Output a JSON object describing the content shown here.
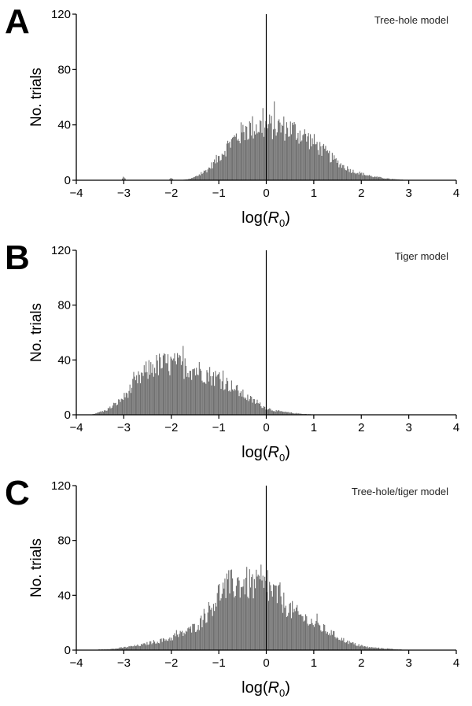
{
  "chart_data": [
    {
      "panel_label": "A",
      "type": "bar",
      "subtype": "histogram",
      "title": "Tree-hole model",
      "xlabel": "log(R0)",
      "xlabel_base": "log(",
      "xlabel_symbol": "R",
      "xlabel_sub": "0",
      "xlabel_close": ")",
      "ylabel": "No. trials",
      "xlim": [
        -4,
        4
      ],
      "ylim": [
        0,
        120
      ],
      "xticks": [
        "−4",
        "−3",
        "−2",
        "−1",
        "0",
        "1",
        "2",
        "3",
        "4"
      ],
      "yticks": [
        "0",
        "40",
        "80",
        "120"
      ],
      "reference_line_x": 0,
      "bar_color": "#6e6e6e",
      "profile": {
        "x": [
          -3.05,
          -3.0,
          -2.95,
          -2.05,
          -2.0,
          -1.95,
          -1.8,
          -1.6,
          -1.4,
          -1.2,
          -1.0,
          -0.8,
          -0.6,
          -0.4,
          -0.2,
          0.0,
          0.2,
          0.4,
          0.6,
          0.8,
          1.0,
          1.2,
          1.4,
          1.6,
          1.8,
          2.0,
          2.2,
          2.4,
          2.6,
          2.8,
          3.0,
          3.05
        ],
        "y": [
          0,
          3,
          0,
          0,
          2,
          0,
          0,
          1,
          4,
          9,
          17,
          26,
          33,
          38,
          40,
          40,
          40,
          39,
          37,
          33,
          28,
          22,
          16,
          11,
          7,
          5,
          3,
          2,
          1,
          0.5,
          0.2,
          0
        ]
      }
    },
    {
      "panel_label": "B",
      "type": "bar",
      "subtype": "histogram",
      "title": "Tiger model",
      "xlabel": "log(R0)",
      "xlabel_base": "log(",
      "xlabel_symbol": "R",
      "xlabel_sub": "0",
      "xlabel_close": ")",
      "ylabel": "No. trials",
      "xlim": [
        -4,
        4
      ],
      "ylim": [
        0,
        120
      ],
      "xticks": [
        "−4",
        "−3",
        "−2",
        "−1",
        "0",
        "1",
        "2",
        "3",
        "4"
      ],
      "yticks": [
        "0",
        "40",
        "80",
        "120"
      ],
      "reference_line_x": 0,
      "bar_color": "#6e6e6e",
      "profile": {
        "x": [
          -3.7,
          -3.6,
          -3.4,
          -3.2,
          -3.0,
          -2.8,
          -2.6,
          -2.4,
          -2.2,
          -2.0,
          -1.8,
          -1.6,
          -1.4,
          -1.2,
          -1.0,
          -0.8,
          -0.6,
          -0.4,
          -0.2,
          0.0,
          0.2,
          0.4,
          0.6,
          0.8,
          1.0,
          1.2,
          1.4
        ],
        "y": [
          0,
          1,
          3,
          7,
          13,
          22,
          30,
          36,
          38,
          38,
          37,
          35,
          33,
          30,
          27,
          23,
          18,
          13,
          9,
          5,
          3,
          2,
          1.2,
          0.6,
          0.3,
          0.1,
          0
        ]
      }
    },
    {
      "panel_label": "C",
      "type": "bar",
      "subtype": "histogram",
      "title": "Tree-hole/tiger model",
      "xlabel": "log(R0)",
      "xlabel_base": "log(",
      "xlabel_symbol": "R",
      "xlabel_sub": "0",
      "xlabel_close": ")",
      "ylabel": "No. trials",
      "xlim": [
        -4,
        4
      ],
      "ylim": [
        0,
        120
      ],
      "xticks": [
        "−4",
        "−3",
        "−2",
        "−1",
        "0",
        "1",
        "2",
        "3",
        "4"
      ],
      "yticks": [
        "0",
        "40",
        "80",
        "120"
      ],
      "reference_line_x": 0,
      "bar_color": "#6e6e6e",
      "profile": {
        "x": [
          -3.7,
          -3.5,
          -3.2,
          -3.0,
          -2.8,
          -2.6,
          -2.4,
          -2.2,
          -2.0,
          -1.8,
          -1.6,
          -1.4,
          -1.2,
          -1.0,
          -0.8,
          -0.6,
          -0.4,
          -0.2,
          0.0,
          0.2,
          0.4,
          0.6,
          0.8,
          1.0,
          1.2,
          1.4,
          1.6,
          1.8,
          2.0,
          2.2,
          2.4,
          2.6,
          2.8,
          3.0,
          3.05
        ],
        "y": [
          0,
          0.5,
          1,
          2,
          3,
          4,
          6,
          7,
          9,
          12,
          15,
          20,
          30,
          42,
          48,
          50,
          50,
          48,
          47,
          42,
          34,
          28,
          24,
          20,
          16,
          12,
          8,
          5,
          3,
          2,
          1.5,
          1,
          0.5,
          0.3,
          0
        ]
      }
    }
  ]
}
